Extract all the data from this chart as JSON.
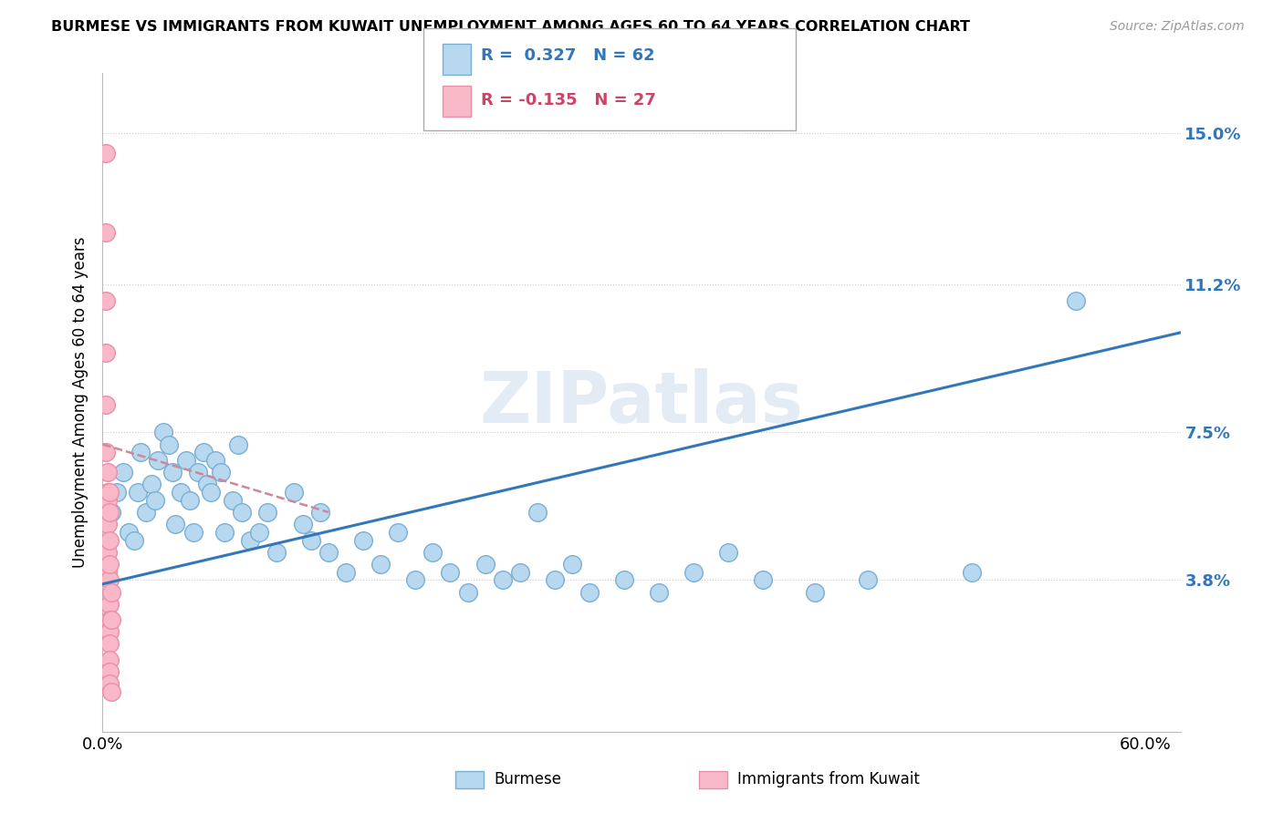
{
  "title": "BURMESE VS IMMIGRANTS FROM KUWAIT UNEMPLOYMENT AMONG AGES 60 TO 64 YEARS CORRELATION CHART",
  "source": "Source: ZipAtlas.com",
  "ylabel": "Unemployment Among Ages 60 to 64 years",
  "y_tick_values": [
    0.038,
    0.075,
    0.112,
    0.15
  ],
  "y_tick_labels": [
    "3.8%",
    "7.5%",
    "11.2%",
    "15.0%"
  ],
  "xlim": [
    0.0,
    0.62
  ],
  "ylim": [
    0.0,
    0.165
  ],
  "legend_r1": "R =  0.327   N = 62",
  "legend_r2": "R = -0.135   N = 27",
  "legend_label_burmese": "Burmese",
  "legend_label_kuwait": "Immigrants from Kuwait",
  "watermark": "ZIPatlas",
  "burmese_color": "#b8d8f0",
  "burmese_edge_color": "#7aafd4",
  "kuwait_color": "#f8b8c8",
  "kuwait_edge_color": "#e890a8",
  "burmese_trend_color": "#3377bb",
  "kuwait_trend_color": "#cc8899",
  "r1_color": "#3377bb",
  "r2_color": "#cc4466",
  "burmese_x": [
    0.005,
    0.008,
    0.012,
    0.015,
    0.018,
    0.02,
    0.022,
    0.025,
    0.028,
    0.03,
    0.032,
    0.035,
    0.038,
    0.04,
    0.042,
    0.045,
    0.048,
    0.05,
    0.052,
    0.055,
    0.058,
    0.06,
    0.062,
    0.065,
    0.068,
    0.07,
    0.075,
    0.078,
    0.08,
    0.085,
    0.09,
    0.095,
    0.1,
    0.11,
    0.115,
    0.12,
    0.125,
    0.13,
    0.14,
    0.15,
    0.16,
    0.17,
    0.18,
    0.19,
    0.2,
    0.21,
    0.22,
    0.23,
    0.24,
    0.25,
    0.26,
    0.27,
    0.28,
    0.3,
    0.32,
    0.34,
    0.36,
    0.38,
    0.41,
    0.44,
    0.5,
    0.56
  ],
  "burmese_y": [
    0.055,
    0.06,
    0.065,
    0.05,
    0.048,
    0.06,
    0.07,
    0.055,
    0.062,
    0.058,
    0.068,
    0.075,
    0.072,
    0.065,
    0.052,
    0.06,
    0.068,
    0.058,
    0.05,
    0.065,
    0.07,
    0.062,
    0.06,
    0.068,
    0.065,
    0.05,
    0.058,
    0.072,
    0.055,
    0.048,
    0.05,
    0.055,
    0.045,
    0.06,
    0.052,
    0.048,
    0.055,
    0.045,
    0.04,
    0.048,
    0.042,
    0.05,
    0.038,
    0.045,
    0.04,
    0.035,
    0.042,
    0.038,
    0.04,
    0.055,
    0.038,
    0.042,
    0.035,
    0.038,
    0.035,
    0.04,
    0.045,
    0.038,
    0.035,
    0.038,
    0.04,
    0.108
  ],
  "kuwait_x": [
    0.002,
    0.002,
    0.002,
    0.002,
    0.002,
    0.002,
    0.003,
    0.003,
    0.003,
    0.003,
    0.003,
    0.003,
    0.004,
    0.004,
    0.004,
    0.004,
    0.004,
    0.004,
    0.004,
    0.004,
    0.004,
    0.004,
    0.004,
    0.004,
    0.005,
    0.005,
    0.005
  ],
  "kuwait_y": [
    0.145,
    0.125,
    0.108,
    0.095,
    0.082,
    0.07,
    0.065,
    0.06,
    0.058,
    0.052,
    0.045,
    0.04,
    0.038,
    0.032,
    0.028,
    0.025,
    0.022,
    0.018,
    0.015,
    0.012,
    0.06,
    0.055,
    0.048,
    0.042,
    0.035,
    0.028,
    0.01
  ],
  "burmese_trend_x": [
    0.0,
    0.62
  ],
  "burmese_trend_y": [
    0.037,
    0.1
  ],
  "kuwait_trend_x": [
    0.0,
    0.13
  ],
  "kuwait_trend_y": [
    0.072,
    0.055
  ]
}
